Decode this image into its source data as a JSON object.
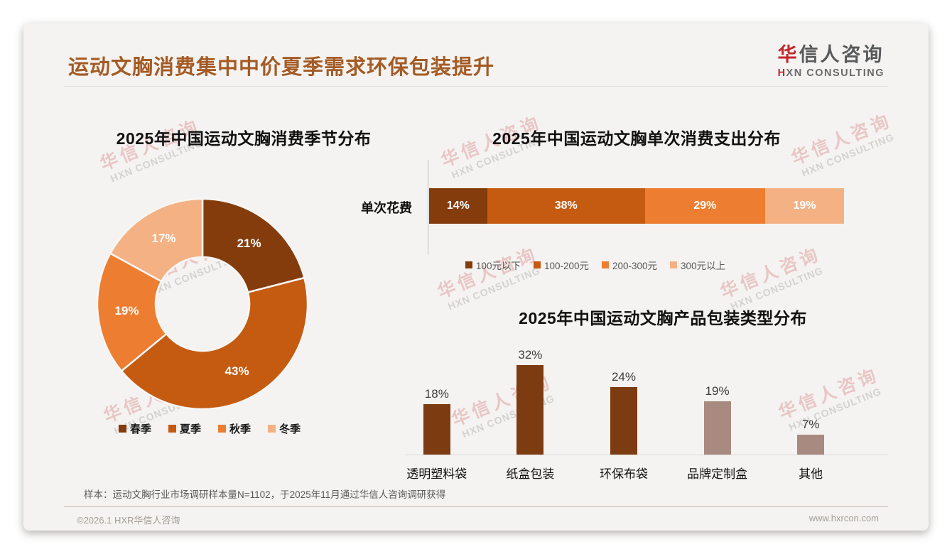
{
  "page": {
    "title": "运动文胸消费集中中价夏季需求环保包装提升",
    "title_color": "#A45B25",
    "logo": {
      "zh_accent": "华",
      "zh_rest": "信人咨询",
      "en_accent": "H",
      "en_rest": "XN CONSULTING",
      "accent_color": "#C1272D"
    },
    "watermark": {
      "zh": "华信人咨询",
      "en": "HXN CONSULTING"
    },
    "footnote": "样本：运动文胸行业市场调研样本量N=1102，于2025年11月通过华信人咨询调研获得",
    "footer": {
      "copyright": "©2026.1 HXR华信人咨询",
      "website": "www.hxrcon.com"
    }
  },
  "chart_data": [
    {
      "id": "season-donut",
      "type": "pie",
      "subtype": "donut",
      "title": "2025年中国运动文胸消费季节分布",
      "categories": [
        "春季",
        "夏季",
        "秋季",
        "冬季"
      ],
      "values": [
        21,
        43,
        19,
        17
      ],
      "labels": [
        "21%",
        "43%",
        "19%",
        "17%"
      ],
      "colors": [
        "#843C0C",
        "#C55A11",
        "#ED7D31",
        "#F4B183"
      ],
      "start_angle_deg": -90,
      "direction": "clockwise",
      "legend_position": "bottom"
    },
    {
      "id": "spend-stacked-bar",
      "type": "bar",
      "subtype": "horizontal-stacked",
      "title": "2025年中国运动文胸单次消费支出分布",
      "axis_category": "单次花费",
      "series": [
        {
          "name": "100元以下",
          "value": 14,
          "label": "14%",
          "color": "#843C0C"
        },
        {
          "name": "100-200元",
          "value": 38,
          "label": "38%",
          "color": "#C55A11"
        },
        {
          "name": "200-300元",
          "value": 29,
          "label": "29%",
          "color": "#ED7D31"
        },
        {
          "name": "300元以上",
          "value": 19,
          "label": "19%",
          "color": "#F4B183"
        }
      ],
      "xlim": [
        0,
        100
      ],
      "legend_position": "bottom"
    },
    {
      "id": "packaging-bar",
      "type": "bar",
      "subtype": "vertical",
      "title": "2025年中国运动文胸产品包装类型分布",
      "categories": [
        "透明塑料袋",
        "纸盒包装",
        "环保布袋",
        "品牌定制盒",
        "其他"
      ],
      "values": [
        18,
        32,
        24,
        19,
        7
      ],
      "labels": [
        "18%",
        "32%",
        "24%",
        "19%",
        "7%"
      ],
      "colors": [
        "#7D3B11",
        "#7D3B11",
        "#7D3B11",
        "#A98A80",
        "#A98A80"
      ],
      "grid": false,
      "ylim": [
        0,
        40
      ]
    }
  ]
}
